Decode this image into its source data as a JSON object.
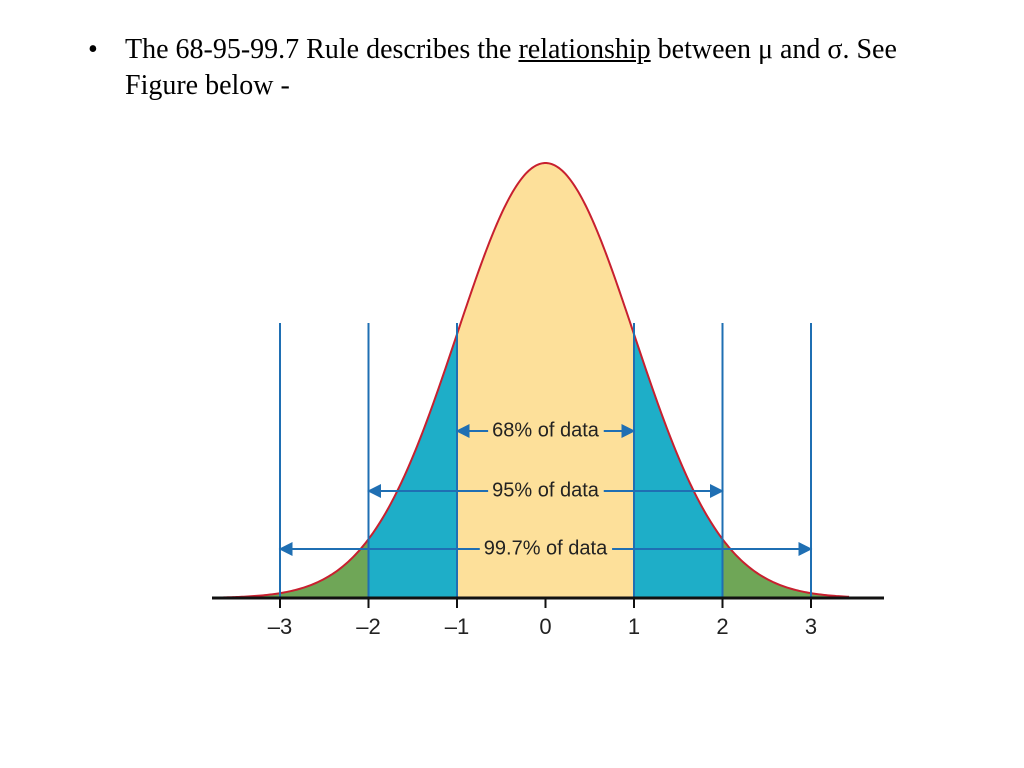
{
  "bullet": {
    "before": "The 68-95-99.7 Rule describes the ",
    "underlined": "relationship",
    "after": " between μ and σ.  See Figure below -"
  },
  "figure": {
    "tick_labels": [
      "–3",
      "–2",
      "–1",
      "0",
      "1",
      "2",
      "3"
    ],
    "ranges": [
      "68% of data",
      "95% of data",
      "99.7% of data"
    ]
  }
}
